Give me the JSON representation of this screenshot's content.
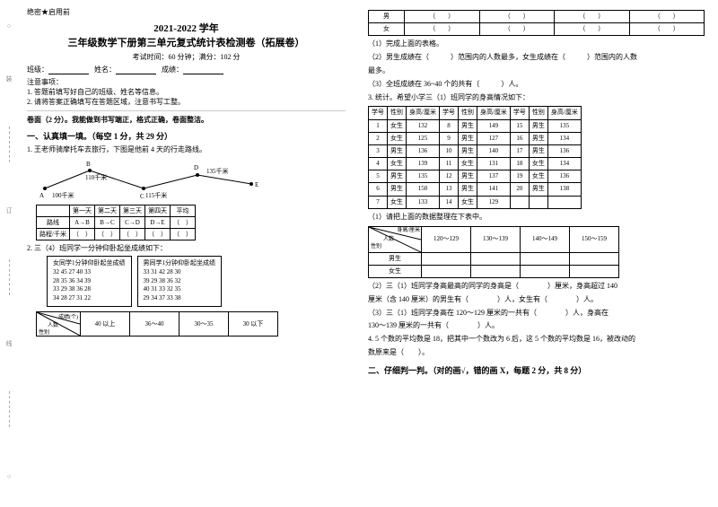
{
  "header": {
    "confidential": "绝密★启用前",
    "year": "2021-2022 学年",
    "title": "三年级数学下册第三单元复式统计表检测卷（拓展卷）",
    "exam_info": "考试时间：60 分钟；满分：102 分",
    "class_label": "班级：",
    "name_label": "姓名：",
    "score_label": "成绩：",
    "notice_title": "注意事项：",
    "notice1": "1. 答题前填写好自己的班级、姓名等信息。",
    "notice2": "2. 请将答案正确填写在答题区域，注意书写工整。",
    "face_score": "卷面（2 分）。我能做到书写端正，格式正确，卷面整洁。"
  },
  "section1": {
    "heading": "一、认真填一填。（每空 1 分，共 29 分）",
    "q1_text": "1. 王老师骑摩托车去旅行，下图是他前 4 天的行走路线。",
    "route": {
      "points": [
        "A",
        "B",
        "C",
        "D",
        "E"
      ],
      "labels": [
        "100千米",
        "110千米",
        "115千米",
        "135千米"
      ],
      "table_head": [
        "",
        "第一天",
        "第二天",
        "第三天",
        "第四天",
        "平均"
      ],
      "row1": [
        "路线",
        "A→B",
        "B→C",
        "C→D",
        "D→E",
        "（　）"
      ],
      "row2": [
        "路程/千米",
        "（　）",
        "（　）",
        "（　）",
        "（　）",
        "（　）"
      ]
    },
    "q2_text": "2. 三（4）班同学一分钟仰卧起坐成绩如下：",
    "girls_title": "女同学1分钟仰卧起坐成绩",
    "girls_data": [
      "32 45 27 40 33",
      "28 35 36 34 39",
      "33 29 38 36 28",
      "34 28 27 31 22"
    ],
    "boys_title": "男同学1分钟仰卧起坐成绩",
    "boys_data": [
      "33 31 42 28 30",
      "39 29 38 36 32",
      "40 31 33 32 35",
      "29 34 37 33 38"
    ],
    "tally_head": [
      "成绩(个)",
      "40 以上",
      "36～40",
      "30～35",
      "30 以下"
    ],
    "tally_diag_top": "成绩(个)",
    "tally_diag_left": "人数",
    "tally_diag_bottom": "性别"
  },
  "right": {
    "gender_table": {
      "rows": [
        "男",
        "女"
      ],
      "cells": [
        "（　　）",
        "（　　）",
        "（　　）",
        "（　　）"
      ]
    },
    "p1": "（1）完成上面的表格。",
    "p2a": "（2）男生成绩在（　　　）范围内的人数最多，女生成绩在（　　　）范围内的人数",
    "p2b": "最多。",
    "p3": "（3）全班成绩在 36~40 个的共有（　　　）人。",
    "q3_text": "3. 统计。希望小学三（1）班同学的身高情况如下：",
    "height_head": [
      "学号",
      "性别",
      "身高/厘米",
      "学号",
      "性别",
      "身高/厘米",
      "学号",
      "性别",
      "身高/厘米"
    ],
    "height_rows": [
      [
        "1",
        "女生",
        "132",
        "8",
        "男生",
        "149",
        "15",
        "男生",
        "135"
      ],
      [
        "2",
        "女生",
        "125",
        "9",
        "男生",
        "127",
        "16",
        "男生",
        "134"
      ],
      [
        "3",
        "男生",
        "136",
        "10",
        "男生",
        "140",
        "17",
        "男生",
        "136"
      ],
      [
        "4",
        "女生",
        "139",
        "11",
        "女生",
        "131",
        "18",
        "女生",
        "134"
      ],
      [
        "5",
        "男生",
        "135",
        "12",
        "男生",
        "137",
        "19",
        "女生",
        "136"
      ],
      [
        "6",
        "男生",
        "150",
        "13",
        "男生",
        "141",
        "20",
        "男生",
        "138"
      ],
      [
        "7",
        "女生",
        "133",
        "14",
        "女生",
        "129",
        "",
        "",
        " "
      ]
    ],
    "p_reorg": "（1）请把上面的数据整理在下表中。",
    "ht_head": [
      "身高/厘米",
      "120～129",
      "130～139",
      "140～149",
      "150～159"
    ],
    "ht_diag_top": "身高/厘米",
    "ht_diag_mid": "人数",
    "ht_diag_bot": "性别",
    "ht_rows": [
      "男生",
      "女生"
    ],
    "p4a": "（2）三（1）班同学身高最高的同学的身高是（　　　　）厘米，身高超过 140",
    "p4b": "厘米（含 140 厘米）的男生有（　　　　）人，女生有（　　　　）人。",
    "p4c": "（3）三（1）班同学身高在 120～129 厘米的一共有（　　　　）人，身高在",
    "p4d": "130～139 厘米的一共有（　　　　）人。",
    "q4_text": "4. 5 个数的平均数是 18，把其中一个数改为 6 后，这 5 个数的平均数是 16，被改动的",
    "q4_text2": "数原来是（　　）。",
    "section2": "二、仔细判一判。（对的画√，错的画 X，每题 2 分，共 8 分）"
  },
  "binding": [
    "○",
    "装",
    "○",
    "订",
    "○",
    "线",
    "○",
    "内",
    "○",
    "不",
    "○",
    "要",
    "○",
    "答",
    "○",
    "题",
    "○"
  ],
  "colors": {
    "text": "#000000",
    "bg": "#ffffff",
    "border": "#000000"
  }
}
